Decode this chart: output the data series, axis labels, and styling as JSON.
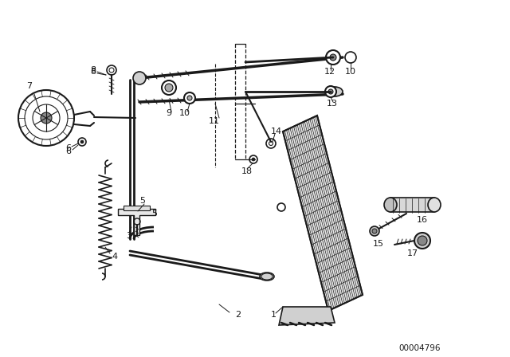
{
  "bg_color": "#ffffff",
  "line_color": "#1a1a1a",
  "part_number_text": "00004796",
  "figsize": [
    6.4,
    4.48
  ],
  "dpi": 100
}
